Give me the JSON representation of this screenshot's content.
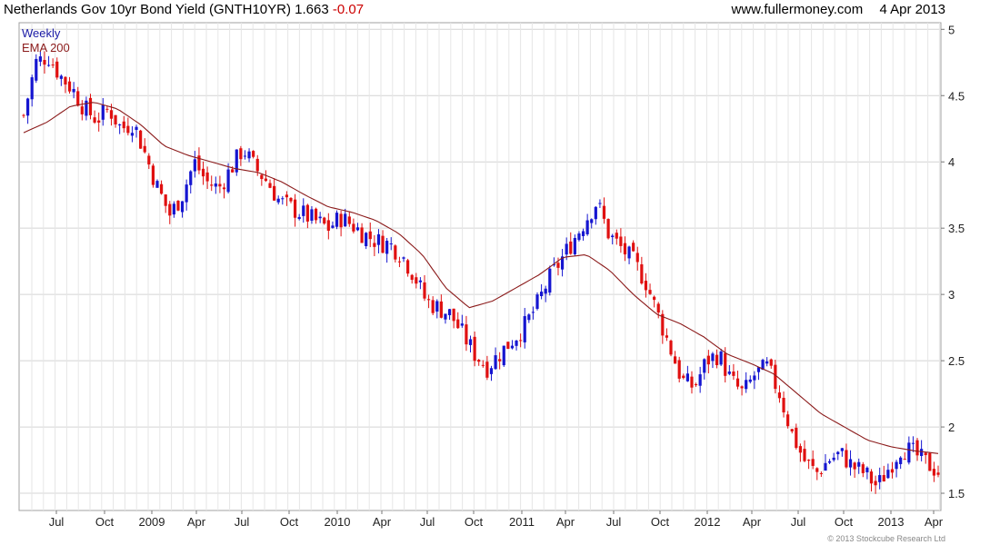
{
  "header": {
    "title": "Netherlands Gov 10yr Bond Yield (GNTH10YR)",
    "last_value": "1.663",
    "change": "-0.07",
    "source": "www.fullermoney.com",
    "date": "4 Apr 2013"
  },
  "legend": {
    "weekly": "Weekly",
    "ema": "EMA 200"
  },
  "copyright": "© 2013 Stockcube Research Ltd",
  "chart_data": {
    "type": "candlestick",
    "title": "Netherlands Gov 10yr Bond Yield (GNTH10YR)",
    "frequency": "Weekly",
    "ylim": [
      1.37,
      5.05
    ],
    "y_ticks": [
      1.5,
      2,
      2.5,
      3,
      3.5,
      4,
      4.5,
      5
    ],
    "y_axis_side": "right",
    "grid": true,
    "x_ticks": [
      "Jul",
      "Oct",
      "2009",
      "Apr",
      "Jul",
      "Oct",
      "2010",
      "Apr",
      "Jul",
      "Oct",
      "2011",
      "Apr",
      "Jul",
      "Oct",
      "2012",
      "Apr",
      "Jul",
      "Oct",
      "2013",
      "Apr"
    ],
    "colors": {
      "up": "#1515d0",
      "down": "#e01010",
      "ema": "#8b1a1a",
      "grid": "#d4d4d4"
    },
    "series": [
      {
        "name": "Weekly",
        "style": "candlestick",
        "approx_weekly_close": [
          4.35,
          4.75,
          4.8,
          4.65,
          4.55,
          4.4,
          4.32,
          4.4,
          4.25,
          4.3,
          4.05,
          3.8,
          3.6,
          3.75,
          4.0,
          3.85,
          3.8,
          3.95,
          4.1,
          3.95,
          3.85,
          3.7,
          3.65,
          3.6,
          3.55,
          3.5,
          3.58,
          3.52,
          3.45,
          3.4,
          3.38,
          3.3,
          3.15,
          2.95,
          2.9,
          2.85,
          2.7,
          2.55,
          2.45,
          2.55,
          2.65,
          2.75,
          2.9,
          3.1,
          3.25,
          3.4,
          3.55,
          3.7,
          3.45,
          3.35,
          3.25,
          3.1,
          2.85,
          2.6,
          2.35,
          2.3,
          2.5,
          2.55,
          2.35,
          2.25,
          2.4,
          2.45,
          2.25,
          1.95,
          1.75,
          1.65,
          1.75,
          1.8,
          1.7,
          1.65,
          1.55,
          1.7,
          1.85,
          1.8,
          1.73,
          1.663
        ]
      },
      {
        "name": "EMA 200",
        "style": "line",
        "approx_values": [
          4.22,
          4.3,
          4.42,
          4.45,
          4.4,
          4.28,
          4.12,
          4.05,
          4.0,
          3.95,
          3.92,
          3.85,
          3.75,
          3.66,
          3.62,
          3.56,
          3.46,
          3.3,
          3.05,
          2.9,
          2.95,
          3.05,
          3.15,
          3.28,
          3.3,
          3.18,
          3.0,
          2.85,
          2.78,
          2.68,
          2.55,
          2.48,
          2.4,
          2.25,
          2.1,
          2.0,
          1.9,
          1.85,
          1.82,
          1.8
        ]
      }
    ]
  }
}
